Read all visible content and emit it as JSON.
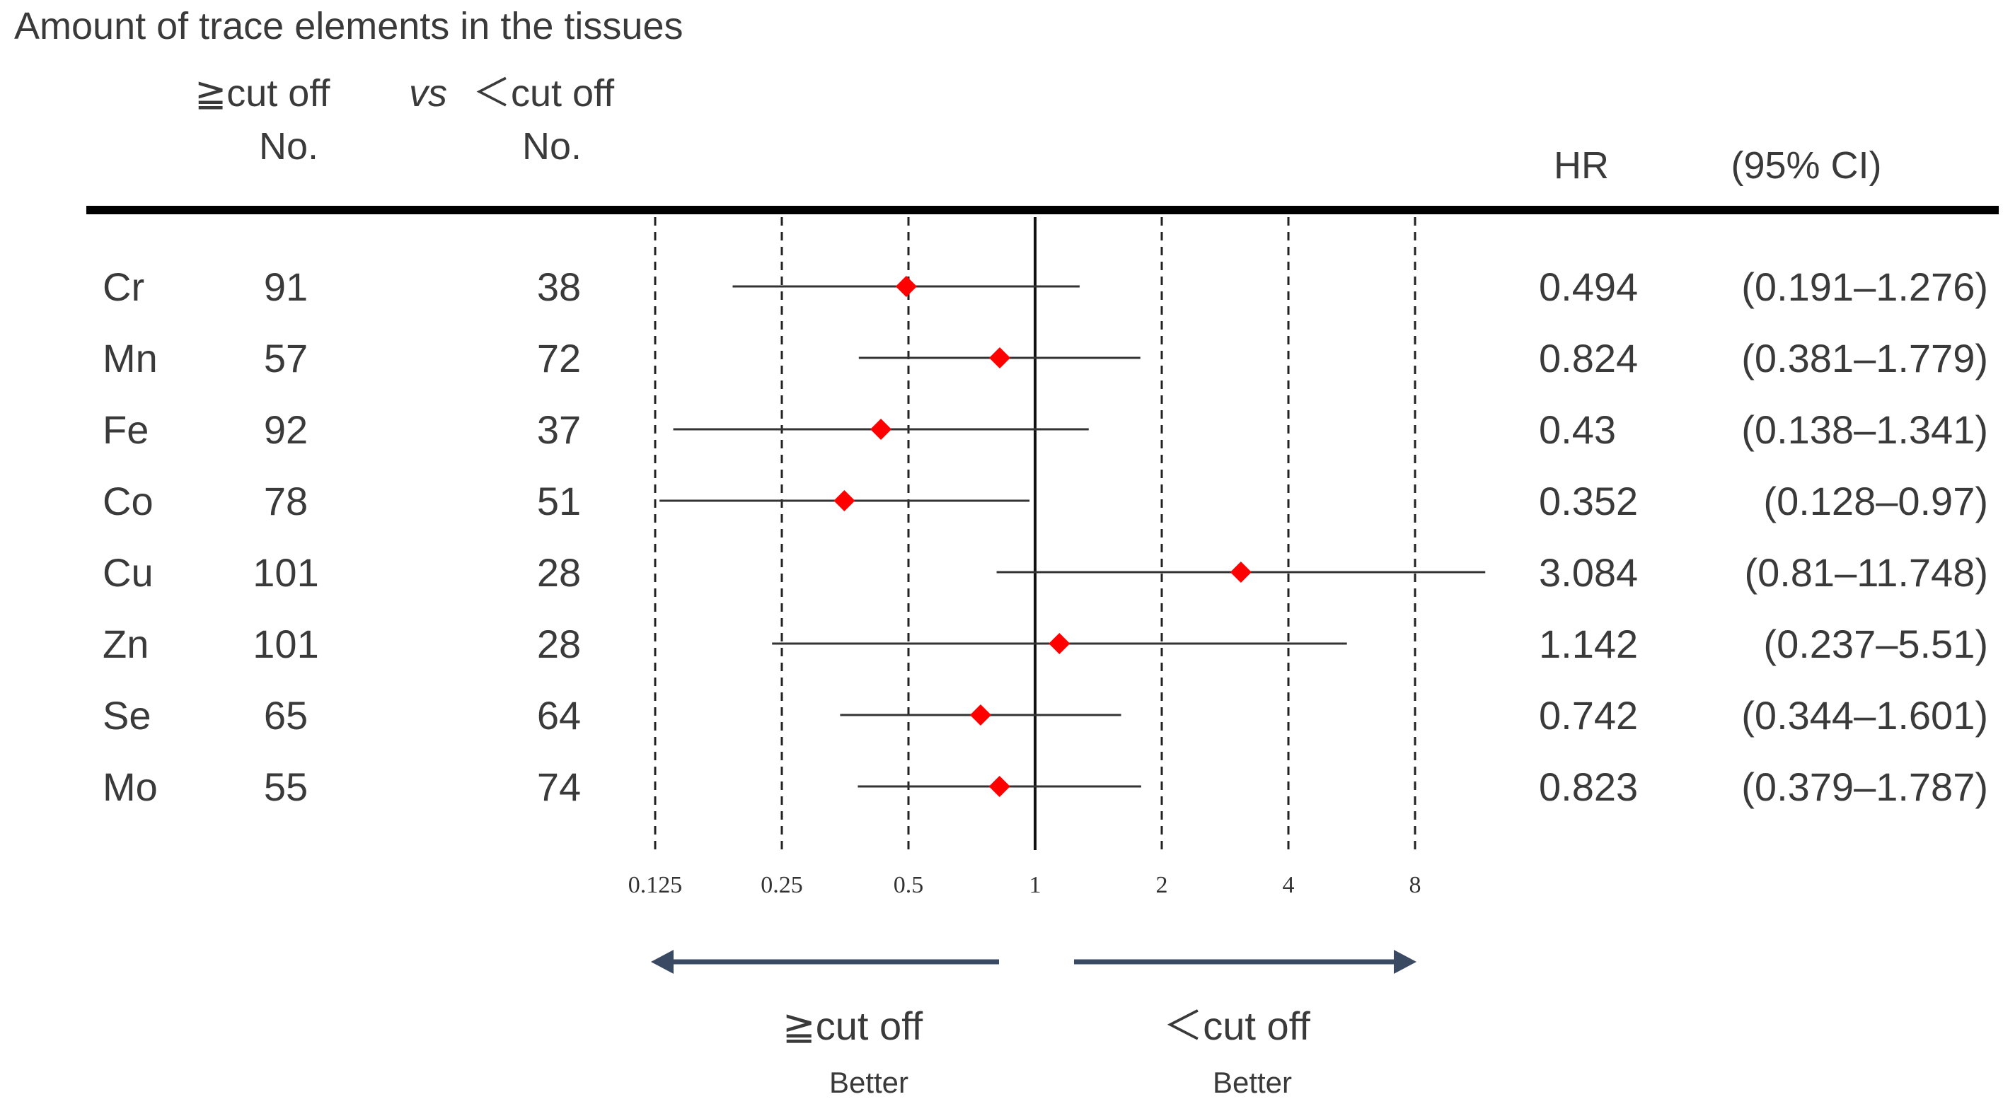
{
  "chart_data": {
    "type": "forest",
    "title": "Amount of trace elements in the tissues",
    "header": {
      "group_high": "≧cut off",
      "vs": "vs",
      "group_low": "＜cut off",
      "no_label_high": "No.",
      "no_label_low": "No.",
      "hr_label": "HR",
      "ci_label": "(95% CI)"
    },
    "x_scale": "log2",
    "xlim": [
      0.125,
      8
    ],
    "reference_line": 1,
    "ticks": [
      "0.125",
      "0.25",
      "0.5",
      "1",
      "2",
      "4",
      "8"
    ],
    "rows": [
      {
        "element": "Cr",
        "n_high": "91",
        "n_low": "38",
        "hr": 0.494,
        "lo": 0.191,
        "hi": 1.276,
        "hr_text": "0.494",
        "ci_text": "(0.191–1.276)"
      },
      {
        "element": "Mn",
        "n_high": "57",
        "n_low": "72",
        "hr": 0.824,
        "lo": 0.381,
        "hi": 1.779,
        "hr_text": "0.824",
        "ci_text": "(0.381–1.779)"
      },
      {
        "element": "Fe",
        "n_high": "92",
        "n_low": "37",
        "hr": 0.43,
        "lo": 0.138,
        "hi": 1.341,
        "hr_text": "0.43",
        "ci_text": "(0.138–1.341)"
      },
      {
        "element": "Co",
        "n_high": "78",
        "n_low": "51",
        "hr": 0.352,
        "lo": 0.128,
        "hi": 0.97,
        "hr_text": "0.352",
        "ci_text": "(0.128–0.97)"
      },
      {
        "element": "Cu",
        "n_high": "101",
        "n_low": "28",
        "hr": 3.084,
        "lo": 0.81,
        "hi": 11.748,
        "hr_text": "3.084",
        "ci_text": "(0.81–11.748)"
      },
      {
        "element": "Zn",
        "n_high": "101",
        "n_low": "28",
        "hr": 1.142,
        "lo": 0.237,
        "hi": 5.51,
        "hr_text": "1.142",
        "ci_text": "(0.237–5.51)"
      },
      {
        "element": "Se",
        "n_high": "65",
        "n_low": "64",
        "hr": 0.742,
        "lo": 0.344,
        "hi": 1.601,
        "hr_text": "0.742",
        "ci_text": "(0.344–1.601)"
      },
      {
        "element": "Mo",
        "n_high": "55",
        "n_low": "74",
        "hr": 0.823,
        "lo": 0.379,
        "hi": 1.787,
        "hr_text": "0.823",
        "ci_text": "(0.379–1.787)"
      }
    ],
    "favors": {
      "left_label": "≧cut off",
      "left_sub": "Better",
      "right_label": "＜cut off",
      "right_sub": "Better"
    },
    "colors": {
      "marker": "#ff0000",
      "ci_line": "#333333",
      "grid": "#222222",
      "arrow": "#3b4a63",
      "header_rule": "#000000"
    }
  }
}
